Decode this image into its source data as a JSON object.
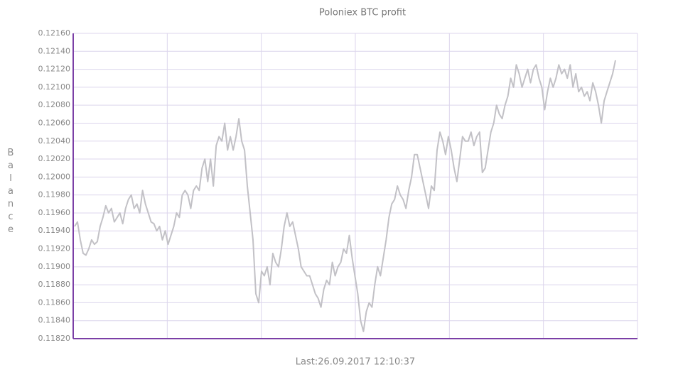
{
  "chart_data": {
    "type": "line",
    "title": "Poloniex BTC profit",
    "y_label": "Balance",
    "footer": "Last:26.09.2017  12:10:37",
    "series": [
      {
        "name": "Balance",
        "color": "#c2c1c6",
        "values": [
          0.11945,
          0.1195,
          0.1193,
          0.11915,
          0.11913,
          0.1192,
          0.1193,
          0.11925,
          0.11928,
          0.11945,
          0.11955,
          0.11968,
          0.1196,
          0.11965,
          0.1195,
          0.11955,
          0.1196,
          0.11948,
          0.11965,
          0.11975,
          0.1198,
          0.11965,
          0.1197,
          0.1196,
          0.11985,
          0.1197,
          0.1196,
          0.1195,
          0.11948,
          0.1194,
          0.11945,
          0.1193,
          0.1194,
          0.11925,
          0.11935,
          0.11945,
          0.1196,
          0.11955,
          0.1198,
          0.11985,
          0.1198,
          0.11965,
          0.11985,
          0.1199,
          0.11985,
          0.1201,
          0.1202,
          0.11995,
          0.1202,
          0.1199,
          0.12035,
          0.12045,
          0.1204,
          0.1206,
          0.1203,
          0.12045,
          0.1203,
          0.12045,
          0.12065,
          0.1204,
          0.1203,
          0.1199,
          0.1196,
          0.1193,
          0.1187,
          0.1186,
          0.11895,
          0.1189,
          0.119,
          0.1188,
          0.11915,
          0.11905,
          0.119,
          0.1192,
          0.11945,
          0.1196,
          0.11945,
          0.1195,
          0.11935,
          0.1192,
          0.119,
          0.11895,
          0.1189,
          0.1189,
          0.1188,
          0.1187,
          0.11865,
          0.11855,
          0.11875,
          0.11885,
          0.1188,
          0.11905,
          0.1189,
          0.119,
          0.11905,
          0.1192,
          0.11915,
          0.11935,
          0.1191,
          0.1189,
          0.1187,
          0.1184,
          0.11828,
          0.1185,
          0.1186,
          0.11855,
          0.1188,
          0.119,
          0.1189,
          0.1191,
          0.1193,
          0.11955,
          0.1197,
          0.11975,
          0.1199,
          0.1198,
          0.11975,
          0.11965,
          0.11985,
          0.12,
          0.12025,
          0.12025,
          0.1201,
          0.11995,
          0.1198,
          0.11965,
          0.1199,
          0.11985,
          0.1203,
          0.1205,
          0.1204,
          0.12025,
          0.12045,
          0.1203,
          0.1201,
          0.11995,
          0.1202,
          0.12045,
          0.1204,
          0.1204,
          0.1205,
          0.12035,
          0.12045,
          0.1205,
          0.12005,
          0.1201,
          0.1203,
          0.1205,
          0.1206,
          0.1208,
          0.1207,
          0.12065,
          0.1208,
          0.1209,
          0.1211,
          0.121,
          0.12125,
          0.12115,
          0.121,
          0.1211,
          0.1212,
          0.12105,
          0.1212,
          0.12125,
          0.1211,
          0.121,
          0.12075,
          0.12095,
          0.1211,
          0.121,
          0.1211,
          0.12125,
          0.12115,
          0.1212,
          0.1211,
          0.12125,
          0.121,
          0.12115,
          0.12095,
          0.121,
          0.1209,
          0.12095,
          0.12085,
          0.12105,
          0.12095,
          0.1208,
          0.1206,
          0.12085,
          0.12095,
          0.12105,
          0.12115,
          0.1213
        ]
      }
    ],
    "ylim": [
      0.1182,
      0.1216
    ],
    "yticks": [
      {
        "value": 0.1182,
        "label": "0.11820"
      },
      {
        "value": 0.1184,
        "label": "0.11840"
      },
      {
        "value": 0.1186,
        "label": "0.11860"
      },
      {
        "value": 0.1188,
        "label": "0.11880"
      },
      {
        "value": 0.119,
        "label": "0.11900"
      },
      {
        "value": 0.1192,
        "label": "0.11920"
      },
      {
        "value": 0.1194,
        "label": "0.11940"
      },
      {
        "value": 0.1196,
        "label": "0.11960"
      },
      {
        "value": 0.1198,
        "label": "0.11980"
      },
      {
        "value": 0.12,
        "label": "0.12000"
      },
      {
        "value": 0.1202,
        "label": "0.12020"
      },
      {
        "value": 0.1204,
        "label": "0.12040"
      },
      {
        "value": 0.1206,
        "label": "0.12060"
      },
      {
        "value": 0.1208,
        "label": "0.12080"
      },
      {
        "value": 0.121,
        "label": "0.12100"
      },
      {
        "value": 0.1212,
        "label": "0.12120"
      },
      {
        "value": 0.1214,
        "label": "0.12140"
      },
      {
        "value": 0.1216,
        "label": "0.12160"
      }
    ],
    "grid": true,
    "axis_color": "#7b3fa6",
    "grid_color": "#dcd5ec"
  }
}
